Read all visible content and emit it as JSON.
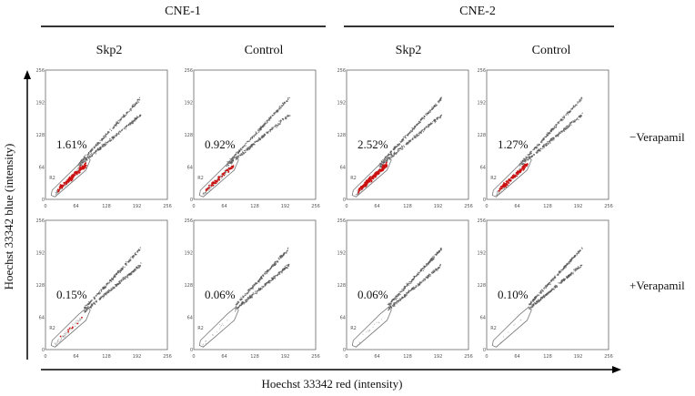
{
  "groups": [
    {
      "label": "CNE-1"
    },
    {
      "label": "CNE-2"
    }
  ],
  "columns": [
    "Skp2",
    "Control",
    "Skp2",
    "Control"
  ],
  "rows": [
    {
      "label": "−Verapamil",
      "percents": [
        "1.61%",
        "0.92%",
        "2.52%",
        "1.27%"
      ]
    },
    {
      "label": "+Verapamil",
      "percents": [
        "0.15%",
        "0.06%",
        "0.06%",
        "0.10%"
      ]
    }
  ],
  "gate_label": "R2",
  "axis": {
    "y_title": "Hoechst 33342 blue (intensity)",
    "x_title": "Hoechst 33342 red (intensity)",
    "x_ticks": [
      "0",
      "64",
      "128",
      "192",
      "256"
    ],
    "y_ticks": [
      "0",
      "64",
      "128",
      "192",
      "256"
    ]
  },
  "colors": {
    "gated": "#cc1111",
    "events": "#555555"
  }
}
